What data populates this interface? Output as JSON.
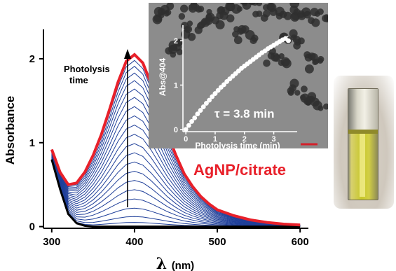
{
  "chart_data": [
    {
      "type": "line",
      "xlabel": "λ (nm)",
      "xlabel_symbol": "λ",
      "xlabel_unit": "(nm)",
      "ylabel": "Absorbance",
      "xlim": [
        290,
        610
      ],
      "ylim": [
        -0.02,
        2.45
      ],
      "x_ticks": [
        300,
        400,
        500,
        600
      ],
      "y_ticks": [
        0,
        1,
        2
      ],
      "grid": false,
      "annotation": "Photolysis time",
      "annotation_lines": [
        "Photolysis",
        "time"
      ],
      "colors": {
        "initial": "#000000",
        "intermediate": "#1f3f99",
        "final": "#e8202a"
      },
      "peak_wavelength": 400,
      "series_peak_values": [
        0.05,
        0.12,
        0.22,
        0.33,
        0.44,
        0.55,
        0.66,
        0.77,
        0.88,
        0.99,
        1.1,
        1.21,
        1.32,
        1.43,
        1.54,
        1.64,
        1.74,
        1.83,
        1.91,
        1.98,
        2.05
      ],
      "wavelengths": [
        300,
        310,
        320,
        330,
        340,
        350,
        360,
        370,
        380,
        390,
        400,
        410,
        420,
        430,
        440,
        450,
        460,
        470,
        480,
        490,
        500,
        520,
        540,
        560,
        580,
        600
      ],
      "final_series": {
        "label": "AgNP/citrate",
        "values": [
          0.92,
          0.65,
          0.5,
          0.52,
          0.65,
          0.85,
          1.1,
          1.4,
          1.72,
          1.97,
          2.05,
          1.95,
          1.7,
          1.4,
          1.1,
          0.85,
          0.63,
          0.48,
          0.36,
          0.27,
          0.2,
          0.13,
          0.08,
          0.05,
          0.03,
          0.02
        ]
      },
      "initial_series": {
        "values": [
          0.8,
          0.45,
          0.15,
          0.04,
          0.01,
          0.0,
          0.0,
          0.0,
          0.0,
          0.0,
          0.0,
          0.0,
          0.0,
          0.0,
          0.0,
          0.0,
          0.0,
          0.0,
          0.0,
          0.0,
          0.0,
          0.0,
          0.0,
          0.0,
          0.0,
          0.0
        ]
      }
    },
    {
      "type": "scatter",
      "xlabel": "Photolysis time (min)",
      "ylabel": "Abs@404",
      "xlim": [
        -0.1,
        3.8
      ],
      "ylim": [
        -0.05,
        2.35
      ],
      "x_ticks": [
        0,
        1,
        2,
        3
      ],
      "y_ticks": [
        0,
        1,
        2
      ],
      "annotation": "τ = 3.8 min",
      "tau_min": 3.8,
      "fit_amplitude": 3.5,
      "points_x": [
        0.0,
        0.1,
        0.2,
        0.3,
        0.4,
        0.5,
        0.6,
        0.7,
        0.8,
        0.9,
        1.0,
        1.1,
        1.2,
        1.3,
        1.4,
        1.5,
        1.6,
        1.7,
        1.8,
        1.9,
        2.0,
        2.1,
        2.2,
        2.3,
        2.4,
        2.5,
        2.6,
        2.7,
        2.8,
        2.9,
        3.0,
        3.1,
        3.2,
        3.3,
        3.4,
        3.5
      ],
      "points_y": [
        0.0,
        0.09,
        0.18,
        0.26,
        0.35,
        0.43,
        0.51,
        0.59,
        0.66,
        0.74,
        0.81,
        0.88,
        0.95,
        1.01,
        1.08,
        1.14,
        1.2,
        1.26,
        1.32,
        1.38,
        1.43,
        1.48,
        1.53,
        1.58,
        1.63,
        1.68,
        1.73,
        1.77,
        1.82,
        1.86,
        1.9,
        1.94,
        1.98,
        2.02,
        2.05,
        2.0
      ]
    }
  ],
  "inset": {
    "background": "#8c8c8c",
    "particle_color": "#2f2f2f",
    "scale_bar_color": "#d4202a"
  },
  "photo": {
    "liquid_color": "#c8c82a"
  }
}
